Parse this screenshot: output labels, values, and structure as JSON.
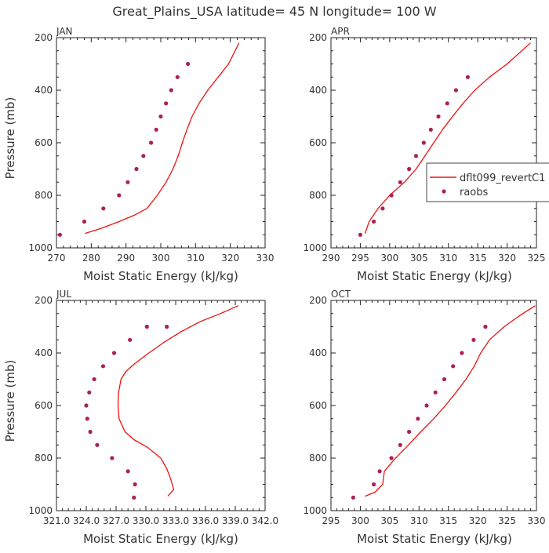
{
  "figure": {
    "title": "Great_Plains_USA   latitude=  45 N longitude=  100 W"
  },
  "colors": {
    "model": "#ee1111",
    "raobs": "#aa2255",
    "axis": "#222222",
    "text": "#333333",
    "legend_border": "#444444"
  },
  "legend": {
    "model_label": "dflt099_revertC1",
    "raobs_label": "raobs"
  },
  "chart_data": [
    {
      "type": "line",
      "title": "JAN",
      "xlabel": "Moist Static Energy (kJ/kg)",
      "ylabel": "Pressure (mb)",
      "xlim": [
        270,
        330
      ],
      "ylim": [
        1000,
        200
      ],
      "xticks": [
        270,
        280,
        290,
        300,
        310,
        320,
        330
      ],
      "xticklabels": [
        "270",
        "280",
        "290",
        "300",
        "310",
        "320",
        "330"
      ],
      "yticks": [
        200,
        400,
        600,
        800,
        1000
      ],
      "yticklabels": [
        "200",
        "400",
        "600",
        "800",
        "1000"
      ],
      "series": [
        {
          "name": "dflt099_revertC1",
          "kind": "line",
          "x": [
            278.2,
            283,
            288,
            292.5,
            296,
            299,
            301.5,
            303.5,
            305,
            306.2,
            307.5,
            309,
            311,
            313.5,
            316.5,
            319.5,
            322.5
          ],
          "y": [
            945,
            925,
            900,
            875,
            850,
            800,
            750,
            700,
            650,
            600,
            550,
            500,
            450,
            400,
            350,
            300,
            220
          ]
        },
        {
          "name": "raobs",
          "kind": "scatter",
          "x": [
            271,
            278,
            283.5,
            288,
            290.5,
            293,
            295,
            297.2,
            298.7,
            300,
            301.5,
            303,
            304.8,
            307.8
          ],
          "y": [
            950,
            900,
            850,
            800,
            750,
            700,
            650,
            600,
            550,
            500,
            450,
            400,
            350,
            300
          ]
        }
      ]
    },
    {
      "type": "line",
      "title": "APR",
      "xlabel": "Moist Static Energy (kJ/kg)",
      "ylabel": "",
      "xlim": [
        290,
        325
      ],
      "ylim": [
        1000,
        200
      ],
      "xticks": [
        290,
        295,
        300,
        305,
        310,
        315,
        320,
        325
      ],
      "xticklabels": [
        "290",
        "295",
        "300",
        "305",
        "310",
        "315",
        "320",
        "325"
      ],
      "yticks": [
        200,
        400,
        600,
        800,
        1000
      ],
      "yticklabels": [
        "200",
        "400",
        "600",
        "800",
        "1000"
      ],
      "series": [
        {
          "name": "dflt099_revertC1",
          "kind": "line",
          "x": [
            295.8,
            296.5,
            298,
            300,
            302.5,
            304.5,
            306,
            307.5,
            309,
            310.7,
            312.5,
            314.5,
            317,
            320,
            324
          ],
          "y": [
            945,
            900,
            850,
            800,
            750,
            700,
            650,
            600,
            550,
            500,
            450,
            400,
            350,
            300,
            220
          ]
        },
        {
          "name": "raobs",
          "kind": "scatter",
          "x": [
            295,
            297.3,
            298.8,
            300.3,
            301.8,
            303.3,
            304.5,
            305.8,
            307,
            308.3,
            309.8,
            311.3,
            313.3
          ],
          "y": [
            950,
            900,
            850,
            800,
            750,
            700,
            650,
            600,
            550,
            500,
            450,
            400,
            350
          ]
        }
      ]
    },
    {
      "type": "line",
      "title": "JUL",
      "xlabel": "Moist Static Energy (kJ/kg)",
      "ylabel": "Pressure (mb)",
      "xlim": [
        321.0,
        342.0
      ],
      "ylim": [
        1000,
        200
      ],
      "xticks": [
        321.0,
        324.0,
        327.0,
        330.0,
        333.0,
        336.0,
        339.0,
        342.0
      ],
      "xticklabels": [
        "321.0",
        "324.0",
        "327.0",
        "330.0",
        "333.0",
        "336.0",
        "339.0",
        "342.0"
      ],
      "yticks": [
        200,
        400,
        600,
        800,
        1000
      ],
      "yticklabels": [
        "200",
        "400",
        "600",
        "800",
        "1000"
      ],
      "series": [
        {
          "name": "dflt099_revertC1",
          "kind": "line",
          "x": [
            332.2,
            332.8,
            332.5,
            332.1,
            331.5,
            330.2,
            328.8,
            327.9,
            327.3,
            327.2,
            327.25,
            327.5,
            328,
            328.9,
            330.3,
            331.8,
            333.5,
            335.5,
            337.5,
            339.3
          ],
          "y": [
            945,
            920,
            880,
            840,
            800,
            760,
            730,
            700,
            650,
            600,
            550,
            500,
            470,
            440,
            400,
            360,
            320,
            280,
            250,
            220
          ]
        },
        {
          "name": "raobs",
          "kind": "scatter",
          "x": [
            328.8,
            328.9,
            328.2,
            326.6,
            325.1,
            324.4,
            324.1,
            324.0,
            324.3,
            324.8,
            325.7,
            326.8,
            328.4,
            330.1,
            332.1
          ],
          "y": [
            950,
            900,
            850,
            800,
            750,
            700,
            650,
            600,
            550,
            500,
            450,
            400,
            350,
            300,
            300
          ]
        }
      ]
    },
    {
      "type": "line",
      "title": "OCT",
      "xlabel": "Moist Static Energy (kJ/kg)",
      "ylabel": "",
      "xlim": [
        295,
        330
      ],
      "ylim": [
        1000,
        200
      ],
      "xticks": [
        295,
        300,
        305,
        310,
        315,
        320,
        325,
        330
      ],
      "xticklabels": [
        "295",
        "300",
        "305",
        "310",
        "315",
        "320",
        "325",
        "330"
      ],
      "yticks": [
        200,
        400,
        600,
        800,
        1000
      ],
      "yticklabels": [
        "200",
        "400",
        "600",
        "800",
        "1000"
      ],
      "series": [
        {
          "name": "dflt099_revertC1",
          "kind": "line",
          "x": [
            300.8,
            302.5,
            303.8,
            304.1,
            306,
            308.2,
            310.3,
            312.5,
            314.5,
            316.3,
            318,
            319.4,
            320.5,
            322,
            324.5,
            327,
            329.8
          ],
          "y": [
            945,
            930,
            900,
            850,
            800,
            750,
            700,
            650,
            600,
            550,
            500,
            450,
            400,
            350,
            300,
            260,
            220
          ]
        },
        {
          "name": "raobs",
          "kind": "scatter",
          "x": [
            298.8,
            302.3,
            303.3,
            305.3,
            306.8,
            308.3,
            309.8,
            311.3,
            312.8,
            314.3,
            315.8,
            317.3,
            319.3,
            321.3
          ],
          "y": [
            950,
            900,
            850,
            800,
            750,
            700,
            650,
            600,
            550,
            500,
            450,
            400,
            350,
            300
          ]
        }
      ]
    }
  ]
}
